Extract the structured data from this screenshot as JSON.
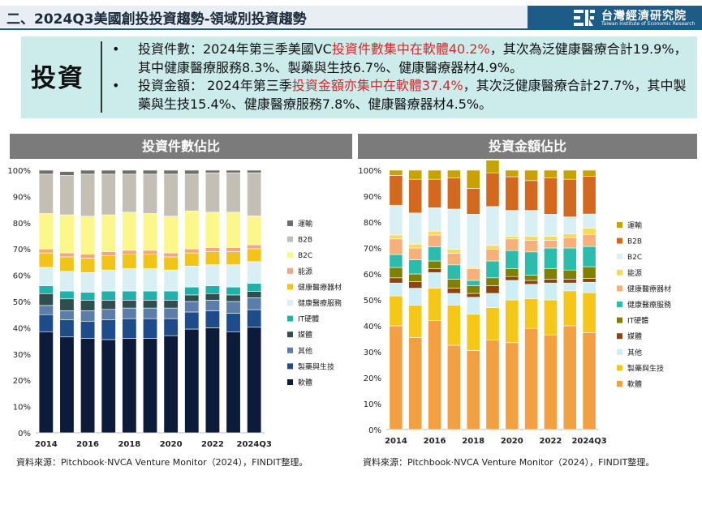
{
  "header": {
    "title": "二、2024Q3美國創投投資趨勢-領域別投資趨勢",
    "brand_zh": "台灣經濟研究院",
    "brand_en": "Taiwan Institute of Economic Research"
  },
  "summary": {
    "tag": "投資",
    "bullet": "•",
    "count_line": {
      "prefix": "投資件數：2024年第三季美國VC",
      "highlight": "投資件數集中在軟體40.2%",
      "suffix": "，其次為泛健康醫療合計19.9%，其中健康醫療服務8.3%、製藥與生技6.7%、健康醫療器材4.9%。"
    },
    "amount_line": {
      "prefix": "投資金額： 2024年第三季",
      "highlight": "投資金額亦集中在軟體37.4%",
      "suffix": "，其次泛健康醫療合計27.7%，其中製藥與生技15.4%、健康醫療服務7.8%、健康醫療器材4.5%。"
    }
  },
  "panels": {
    "count_title": "投資件數佔比",
    "amount_title": "投資金額佔比"
  },
  "source_note": "資料來源：Pitchbook‧NVCA Venture Monitor（2024），FINDIT整理。",
  "chart_data": [
    {
      "type": "bar",
      "stacked": "percent",
      "title": "投資件數佔比",
      "ylim": [
        0,
        100
      ],
      "yticks": [
        "0%",
        "10%",
        "20%",
        "30%",
        "40%",
        "50%",
        "60%",
        "70%",
        "80%",
        "90%",
        "100%"
      ],
      "xtick_labels": [
        "2014",
        "2016",
        "2018",
        "2020",
        "2022",
        "2024Q3"
      ],
      "categories": [
        "2014",
        "2015",
        "2016",
        "2017",
        "2018",
        "2019",
        "2020",
        "2021",
        "2022",
        "2023",
        "2024Q3"
      ],
      "legend_position": "right",
      "series": [
        {
          "name": "軟體",
          "color": "#0d1b3a",
          "values": [
            38.5,
            36.5,
            36.0,
            35.5,
            36.0,
            36.0,
            37.0,
            39.5,
            40.0,
            38.5,
            40.2
          ]
        },
        {
          "name": "製藥與生技",
          "color": "#1e4b8a",
          "values": [
            6.5,
            6.5,
            6.5,
            7.5,
            7.5,
            7.5,
            6.5,
            6.5,
            6.5,
            7.0,
            6.7
          ]
        },
        {
          "name": "其他",
          "color": "#5a7ea9",
          "values": [
            3.5,
            3.5,
            4.0,
            4.0,
            4.0,
            4.0,
            4.0,
            4.0,
            4.0,
            4.5,
            4.5
          ]
        },
        {
          "name": "媒體",
          "color": "#2f4f4f",
          "values": [
            4.5,
            4.5,
            4.0,
            3.5,
            3.0,
            3.0,
            3.0,
            2.5,
            2.5,
            2.5,
            2.5
          ]
        },
        {
          "name": "IT硬體",
          "color": "#20b2aa",
          "values": [
            3.0,
            3.0,
            3.0,
            3.5,
            3.5,
            3.5,
            3.5,
            3.0,
            3.0,
            3.0,
            3.0
          ]
        },
        {
          "name": "健康醫療服務",
          "color": "#d8f0f4",
          "values": [
            7.0,
            7.5,
            7.5,
            8.0,
            8.5,
            8.5,
            8.0,
            8.0,
            8.0,
            8.5,
            8.3
          ]
        },
        {
          "name": "健康醫療器材",
          "color": "#f2c318",
          "values": [
            5.5,
            5.5,
            5.5,
            5.5,
            5.5,
            5.5,
            5.0,
            5.0,
            5.0,
            5.0,
            4.9
          ]
        },
        {
          "name": "能源",
          "color": "#f4a582",
          "values": [
            1.5,
            1.5,
            1.5,
            1.5,
            1.5,
            1.5,
            1.5,
            1.5,
            1.5,
            1.5,
            1.5
          ]
        },
        {
          "name": "B2C",
          "color": "#fbf78a",
          "values": [
            13.5,
            14.5,
            14.5,
            14.0,
            14.5,
            14.0,
            14.0,
            14.5,
            13.5,
            13.5,
            11.0
          ]
        },
        {
          "name": "B2B",
          "color": "#c4bfb5",
          "values": [
            15.0,
            15.0,
            16.0,
            15.5,
            14.5,
            15.0,
            16.0,
            14.0,
            15.0,
            15.0,
            16.4
          ]
        },
        {
          "name": "運輸",
          "color": "#6e6e6e",
          "values": [
            1.5,
            1.5,
            1.5,
            1.5,
            1.5,
            1.5,
            1.5,
            1.5,
            1.0,
            1.0,
            1.0
          ]
        }
      ],
      "legend_order": [
        "運輸",
        "B2B",
        "B2C",
        "能源",
        "健康醫療器材",
        "健康醫療服務",
        "IT硬體",
        "媒體",
        "其他",
        "製藥與生技",
        "軟體"
      ]
    },
    {
      "type": "bar",
      "stacked": "percent",
      "title": "投資金額佔比",
      "ylim": [
        0,
        100
      ],
      "yticks": [
        "0%",
        "10%",
        "20%",
        "30%",
        "40%",
        "50%",
        "60%",
        "70%",
        "80%",
        "90%",
        "100%"
      ],
      "xtick_labels": [
        "2014",
        "2016",
        "2018",
        "2020",
        "2022",
        "2024Q3"
      ],
      "categories": [
        "2014",
        "2015",
        "2016",
        "2017",
        "2018",
        "2019",
        "2020",
        "2021",
        "2022",
        "2023",
        "2024Q3"
      ],
      "legend_position": "right",
      "series": [
        {
          "name": "軟體",
          "color": "#f2a041",
          "values": [
            40.0,
            35.5,
            42.0,
            32.5,
            30.5,
            34.5,
            33.5,
            39.0,
            36.5,
            40.0,
            37.4
          ]
        },
        {
          "name": "製藥與生技",
          "color": "#f5c718",
          "values": [
            11.5,
            12.5,
            12.5,
            15.5,
            14.0,
            12.5,
            16.5,
            11.5,
            13.5,
            13.5,
            15.4
          ]
        },
        {
          "name": "其他",
          "color": "#cdeef4",
          "values": [
            5.0,
            6.5,
            6.0,
            4.5,
            6.5,
            5.5,
            7.5,
            5.5,
            6.5,
            3.0,
            4.0
          ]
        },
        {
          "name": "媒體",
          "color": "#8b4513",
          "values": [
            2.0,
            2.5,
            1.5,
            2.0,
            1.5,
            3.0,
            1.5,
            1.5,
            1.5,
            1.5,
            1.5
          ]
        },
        {
          "name": "IT硬體",
          "color": "#808000",
          "values": [
            4.0,
            3.0,
            3.0,
            3.5,
            3.0,
            3.0,
            3.0,
            2.0,
            4.0,
            3.5,
            4.5
          ]
        },
        {
          "name": "健康醫療服務",
          "color": "#2cbcac",
          "values": [
            5.0,
            5.5,
            5.5,
            5.5,
            2.0,
            6.5,
            7.0,
            9.0,
            8.0,
            8.5,
            7.8
          ]
        },
        {
          "name": "健康醫療器材",
          "color": "#f7b07a",
          "values": [
            6.0,
            4.5,
            4.5,
            4.5,
            4.5,
            4.5,
            4.5,
            4.5,
            3.0,
            4.0,
            4.5
          ]
        },
        {
          "name": "能源",
          "color": "#f9d95c",
          "values": [
            1.5,
            1.5,
            1.5,
            1.5,
            0.5,
            1.5,
            1.0,
            1.5,
            1.5,
            1.5,
            2.5
          ]
        },
        {
          "name": "B2C",
          "color": "#d8f0f4",
          "values": [
            11.5,
            12.0,
            9.0,
            15.5,
            20.5,
            15.0,
            10.0,
            10.0,
            8.5,
            6.5,
            5.5
          ]
        },
        {
          "name": "B2B",
          "color": "#d2691e",
          "values": [
            11.5,
            13.0,
            11.0,
            12.0,
            10.0,
            13.0,
            13.0,
            11.5,
            14.0,
            14.5,
            14.5
          ]
        },
        {
          "name": "運輸",
          "color": "#c8a200",
          "values": [
            2.0,
            3.5,
            3.5,
            3.0,
            7.0,
            6.0,
            2.5,
            4.0,
            3.0,
            3.5,
            2.4
          ]
        }
      ],
      "legend_order": [
        "運輸",
        "B2B",
        "B2C",
        "能源",
        "健康醫療器材",
        "健康醫療服務",
        "IT硬體",
        "媒體",
        "其他",
        "製藥與生技",
        "軟體"
      ]
    }
  ]
}
